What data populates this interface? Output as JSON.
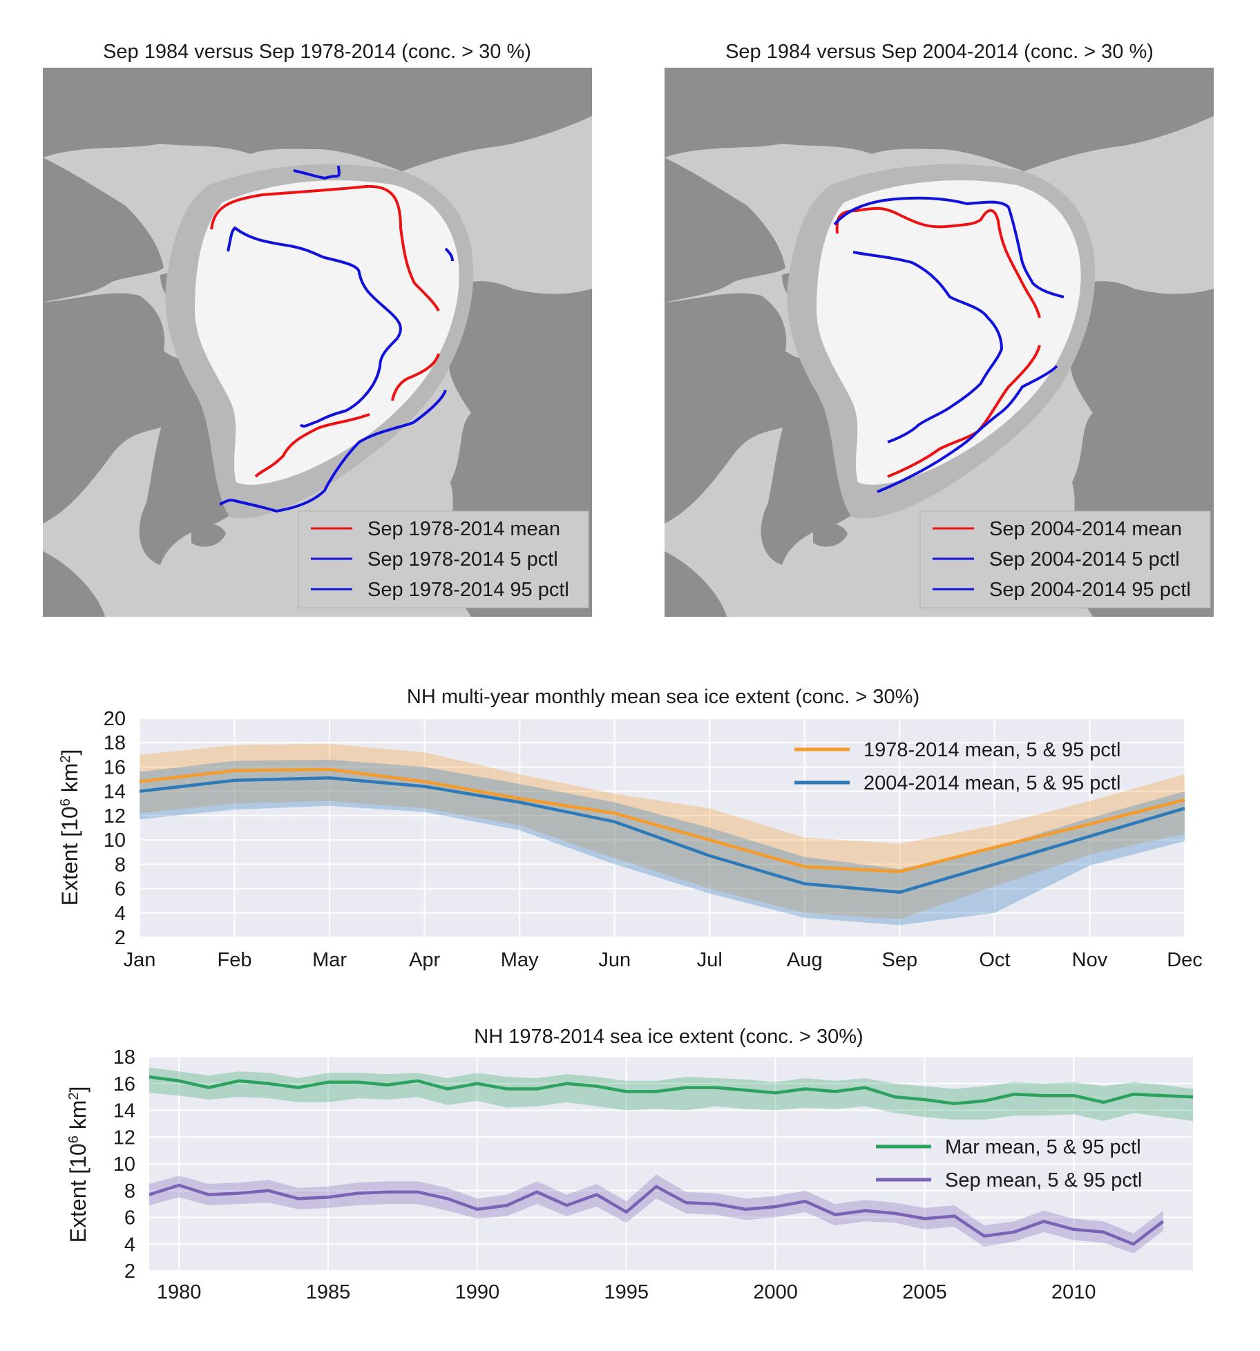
{
  "colors": {
    "land": "#8e8e8e",
    "ocean": "#cbcbcb",
    "shelf": "#b8b8b8",
    "ice": "#f4f4f4",
    "mean_contour": "#ee1111",
    "pctl_contour": "#1111dd",
    "plot_bg": "#eaeaf2",
    "grid": "#ffffff",
    "orange": "#f59b2b",
    "blue": "#2c7ab8",
    "green": "#2ca25f",
    "purple": "#7a63b4"
  },
  "maps": [
    {
      "title": "Sep 1984 versus Sep 1978-2014 (conc. > 30 %)",
      "legend": [
        "Sep 1978-2014 mean",
        "Sep 1978-2014 5 pctl",
        "Sep 1978-2014 95 pctl"
      ]
    },
    {
      "title": "Sep 1984 versus Sep 2004-2014 (conc. > 30 %)",
      "legend": [
        "Sep 2004-2014 mean",
        "Sep 2004-2014 5 pctl",
        "Sep 2004-2014 95 pctl"
      ]
    }
  ],
  "chart_data": [
    {
      "type": "line",
      "title": "NH multi-year monthly mean sea ice extent (conc. > 30%)",
      "ylabel": "Extent [10^6 km^2]",
      "ylim": [
        2,
        20
      ],
      "yticks": [
        2,
        4,
        6,
        8,
        10,
        12,
        14,
        16,
        18,
        20
      ],
      "grid": true,
      "legend_position": "top-right",
      "categories": [
        "Jan",
        "Feb",
        "Mar",
        "Apr",
        "May",
        "Jun",
        "Jul",
        "Aug",
        "Sep",
        "Oct",
        "Nov",
        "Dec"
      ],
      "series": [
        {
          "name": "1978-2014 mean, 5 & 95 pctl",
          "color": "#f59b2b",
          "values": [
            14.8,
            15.7,
            15.8,
            14.8,
            13.4,
            12.2,
            10.0,
            7.8,
            7.4,
            9.4,
            11.3,
            13.3
          ],
          "p5": [
            12.2,
            13.0,
            13.2,
            12.6,
            11.2,
            8.5,
            6.0,
            4.0,
            3.5,
            6.2,
            8.8,
            10.5
          ],
          "p95": [
            17.0,
            17.8,
            17.9,
            17.2,
            15.4,
            13.8,
            12.6,
            10.2,
            9.7,
            11.2,
            13.2,
            15.4
          ]
        },
        {
          "name": "2004-2014 mean, 5 & 95 pctl",
          "color": "#2c7ab8",
          "values": [
            14.0,
            14.9,
            15.1,
            14.4,
            13.1,
            11.5,
            8.7,
            6.4,
            5.7,
            8.0,
            10.3,
            12.6
          ],
          "p5": [
            11.7,
            12.5,
            12.8,
            12.3,
            10.8,
            8.0,
            5.6,
            3.6,
            3.0,
            4.0,
            7.9,
            9.9
          ],
          "p95": [
            15.6,
            16.5,
            16.6,
            16.0,
            14.6,
            13.1,
            11.0,
            8.6,
            7.6,
            9.4,
            11.8,
            14.0
          ]
        }
      ]
    },
    {
      "type": "line",
      "title": "NH 1978-2014 sea ice extent (conc. > 30%)",
      "ylabel": "Extent [10^6 km^2]",
      "ylim": [
        2,
        18
      ],
      "yticks": [
        2,
        4,
        6,
        8,
        10,
        12,
        14,
        16,
        18
      ],
      "xlim": [
        1979,
        2014
      ],
      "xticks": [
        1980,
        1985,
        1990,
        1995,
        2000,
        2005,
        2010
      ],
      "grid": true,
      "legend_position": "center-right",
      "series": [
        {
          "name": "Mar mean, 5 & 95 pctl",
          "color": "#2ca25f",
          "x": [
            1979,
            1980,
            1981,
            1982,
            1983,
            1984,
            1985,
            1986,
            1987,
            1988,
            1989,
            1990,
            1991,
            1992,
            1993,
            1994,
            1995,
            1996,
            1997,
            1998,
            1999,
            2000,
            2001,
            2002,
            2003,
            2004,
            2005,
            2006,
            2007,
            2008,
            2009,
            2010,
            2011,
            2012,
            2013,
            2014
          ],
          "values": [
            16.5,
            16.2,
            15.7,
            16.2,
            16.0,
            15.7,
            16.1,
            16.1,
            15.9,
            16.2,
            15.6,
            16.0,
            15.6,
            15.6,
            16.0,
            15.8,
            15.4,
            15.4,
            15.7,
            15.7,
            15.5,
            15.3,
            15.6,
            15.4,
            15.7,
            15.0,
            14.8,
            14.5,
            14.7,
            15.2,
            15.1,
            15.1,
            14.6,
            15.2,
            15.1,
            15.0
          ],
          "p5": [
            15.3,
            15.1,
            14.8,
            15.0,
            14.9,
            14.6,
            14.6,
            14.9,
            14.8,
            15.0,
            14.4,
            14.7,
            14.2,
            14.3,
            14.6,
            14.3,
            14.0,
            14.1,
            14.0,
            14.3,
            14.1,
            14.0,
            14.2,
            14.1,
            14.3,
            13.8,
            13.5,
            13.3,
            13.3,
            13.6,
            13.6,
            13.7,
            13.2,
            13.8,
            13.5,
            13.2
          ],
          "p95": [
            17.2,
            16.9,
            16.6,
            16.9,
            16.8,
            16.4,
            16.8,
            16.8,
            16.7,
            16.8,
            16.4,
            16.8,
            16.5,
            16.4,
            16.7,
            16.5,
            16.2,
            16.2,
            16.5,
            16.4,
            16.3,
            16.1,
            16.4,
            16.2,
            16.4,
            16.0,
            15.8,
            15.6,
            15.8,
            16.1,
            16.0,
            16.1,
            15.8,
            16.1,
            15.9,
            15.6
          ]
        },
        {
          "name": "Sep mean, 5 & 95 pctl",
          "color": "#7a63b4",
          "x": [
            1979,
            1980,
            1981,
            1982,
            1983,
            1984,
            1985,
            1986,
            1987,
            1988,
            1989,
            1990,
            1991,
            1992,
            1993,
            1994,
            1995,
            1996,
            1997,
            1998,
            1999,
            2000,
            2001,
            2002,
            2003,
            2004,
            2005,
            2006,
            2007,
            2008,
            2009,
            2010,
            2011,
            2012,
            2013
          ],
          "values": [
            7.7,
            8.4,
            7.7,
            7.8,
            8.0,
            7.4,
            7.5,
            7.8,
            7.9,
            7.9,
            7.4,
            6.6,
            6.9,
            7.9,
            6.9,
            7.7,
            6.4,
            8.3,
            7.1,
            7.0,
            6.6,
            6.8,
            7.2,
            6.2,
            6.5,
            6.3,
            5.9,
            6.1,
            4.6,
            4.9,
            5.7,
            5.1,
            4.9,
            4.0,
            5.7
          ],
          "p5": [
            6.9,
            7.5,
            6.9,
            7.0,
            7.1,
            6.6,
            6.7,
            6.9,
            7.0,
            7.0,
            6.5,
            5.9,
            6.1,
            7.0,
            6.1,
            6.8,
            5.6,
            7.4,
            6.3,
            6.2,
            5.8,
            6.0,
            6.4,
            5.4,
            5.7,
            5.6,
            5.1,
            5.3,
            3.8,
            4.2,
            4.9,
            4.3,
            4.1,
            3.3,
            5.0
          ],
          "p95": [
            8.5,
            9.1,
            8.5,
            8.6,
            8.8,
            8.2,
            8.3,
            8.6,
            8.7,
            8.7,
            8.2,
            7.4,
            7.7,
            8.7,
            7.7,
            8.5,
            7.2,
            9.2,
            7.9,
            7.8,
            7.4,
            7.6,
            8.0,
            7.0,
            7.3,
            7.1,
            6.7,
            6.9,
            5.4,
            5.7,
            6.5,
            5.9,
            5.7,
            4.8,
            6.5
          ]
        }
      ]
    }
  ]
}
